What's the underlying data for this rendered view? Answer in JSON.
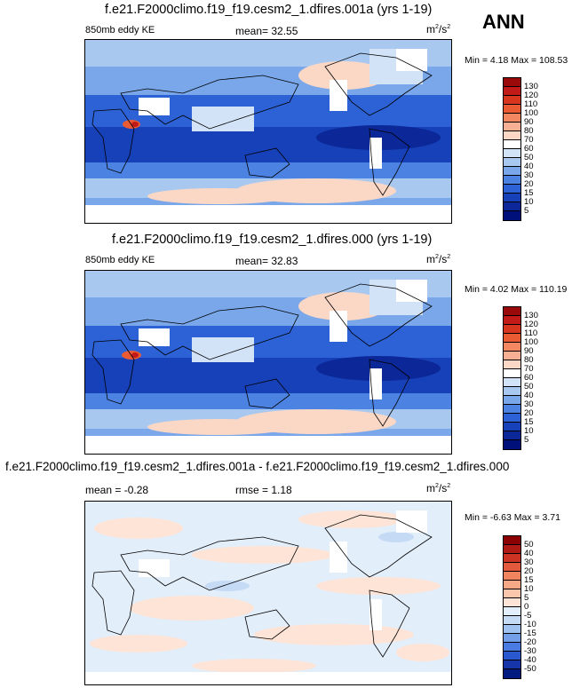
{
  "season": "ANN",
  "panels": [
    {
      "title": "f.e21.F2000climo.f19_f19.cesm2_1.dfires.001a (yrs 1-19)",
      "left_label": "850mb eddy KE",
      "center_label": "mean=  32.55",
      "units": "m²/s²",
      "minmax": "Min =   4.18 Max = 108.53",
      "colorbar": {
        "labels": [
          "130",
          "120",
          "110",
          "100",
          "90",
          "80",
          "70",
          "60",
          "50",
          "40",
          "30",
          "20",
          "15",
          "10",
          "5"
        ],
        "colors": [
          "#9b0a0a",
          "#c21a18",
          "#d8351f",
          "#ea5a33",
          "#f38761",
          "#f8b095",
          "#fbd7c5",
          "#ffffff",
          "#d3e3f7",
          "#a8c8f0",
          "#7aa7ea",
          "#4c83e2",
          "#2c62d6",
          "#1741b8",
          "#0b2798",
          "#00107a"
        ]
      }
    },
    {
      "title": "f.e21.F2000climo.f19_f19.cesm2_1.dfires.000 (yrs 1-19)",
      "left_label": "850mb eddy KE",
      "center_label": "mean=  32.83",
      "units": "m²/s²",
      "minmax": "Min =   4.02 Max = 110.19",
      "colorbar": {
        "labels": [
          "130",
          "120",
          "110",
          "100",
          "90",
          "80",
          "70",
          "60",
          "50",
          "40",
          "30",
          "20",
          "15",
          "10",
          "5"
        ],
        "colors": [
          "#9b0a0a",
          "#c21a18",
          "#d8351f",
          "#ea5a33",
          "#f38761",
          "#f8b095",
          "#fbd7c5",
          "#ffffff",
          "#d3e3f7",
          "#a8c8f0",
          "#7aa7ea",
          "#4c83e2",
          "#2c62d6",
          "#1741b8",
          "#0b2798",
          "#00107a"
        ]
      }
    },
    {
      "title": "f.e21.F2000climo.f19_f19.cesm2_1.dfires.001a - f.e21.F2000climo.f19_f19.cesm2_1.dfires.000",
      "left_label": "mean =  -0.28",
      "center_label": "rmse =   1.18",
      "units": "m²/s²",
      "minmax": "Min =  -6.63 Max =   3.71",
      "colorbar": {
        "labels": [
          "50",
          "40",
          "30",
          "20",
          "15",
          "10",
          "5",
          "0",
          "-5",
          "-10",
          "-15",
          "-20",
          "-30",
          "-40",
          "-50"
        ],
        "colors": [
          "#8b0000",
          "#b01a14",
          "#cc3322",
          "#e25a3b",
          "#f0845f",
          "#f6a786",
          "#fac7ad",
          "#fde4d6",
          "#e3eefb",
          "#c4daf5",
          "#9fc2f0",
          "#739fe8",
          "#4a7be0",
          "#2a58cf",
          "#1535a8",
          "#001a80"
        ]
      }
    }
  ]
}
